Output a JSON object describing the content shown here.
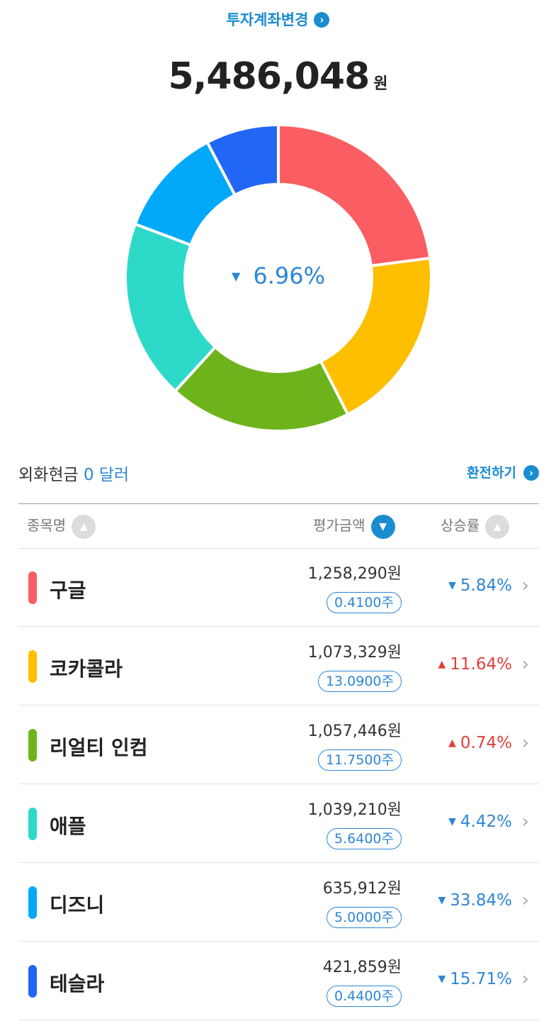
{
  "header": {
    "account_switch_label": "투자계좌변경",
    "chev": "›"
  },
  "total": {
    "amount": "5,486,048",
    "unit": "원"
  },
  "center": {
    "arrow": "▼",
    "rate": "6.96%"
  },
  "fx": {
    "label": "외화현금",
    "value": "0 달러",
    "exchange_label": "환전하기",
    "chev": "›"
  },
  "table": {
    "headers": {
      "name": "종목명",
      "value": "평가금액",
      "rate": "상승률"
    },
    "sort_icons": {
      "name": "▲",
      "value": "▼",
      "rate": "▲"
    },
    "rows": [
      {
        "name": "구글",
        "color": "#fa5e63",
        "amount": "1,258,290원",
        "shares": "0.4100주",
        "rate": "5.84%",
        "arrow": "▼",
        "dir": "down",
        "chev": "›"
      },
      {
        "name": "코카콜라",
        "color": "#fdbf00",
        "amount": "1,073,329원",
        "shares": "13.0900주",
        "rate": "11.64%",
        "arrow": "▲",
        "dir": "up",
        "chev": "›"
      },
      {
        "name": "리얼티 인컴",
        "color": "#6db41c",
        "amount": "1,057,446원",
        "shares": "11.7500주",
        "rate": "0.74%",
        "arrow": "▲",
        "dir": "up",
        "chev": "›"
      },
      {
        "name": "애플",
        "color": "#2dd9c9",
        "amount": "1,039,210원",
        "shares": "5.6400주",
        "rate": "4.42%",
        "arrow": "▼",
        "dir": "down",
        "chev": "›"
      },
      {
        "name": "디즈니",
        "color": "#03a9f9",
        "amount": "635,912원",
        "shares": "5.0000주",
        "rate": "33.84%",
        "arrow": "▼",
        "dir": "down",
        "chev": "›"
      },
      {
        "name": "테슬라",
        "color": "#2266f5",
        "amount": "421,859원",
        "shares": "0.4400주",
        "rate": "15.71%",
        "arrow": "▼",
        "dir": "down",
        "chev": "›"
      }
    ]
  },
  "chart_data": {
    "type": "pie",
    "donut": true,
    "categories": [
      "구글",
      "코카콜라",
      "리얼티 인컴",
      "애플",
      "디즈니",
      "테슬라"
    ],
    "values": [
      1258290,
      1073329,
      1057446,
      1039210,
      635912,
      421859
    ],
    "colors": [
      "#fa5e63",
      "#fdbf00",
      "#6db41c",
      "#2dd9c9",
      "#03a9f9",
      "#2266f5"
    ]
  }
}
